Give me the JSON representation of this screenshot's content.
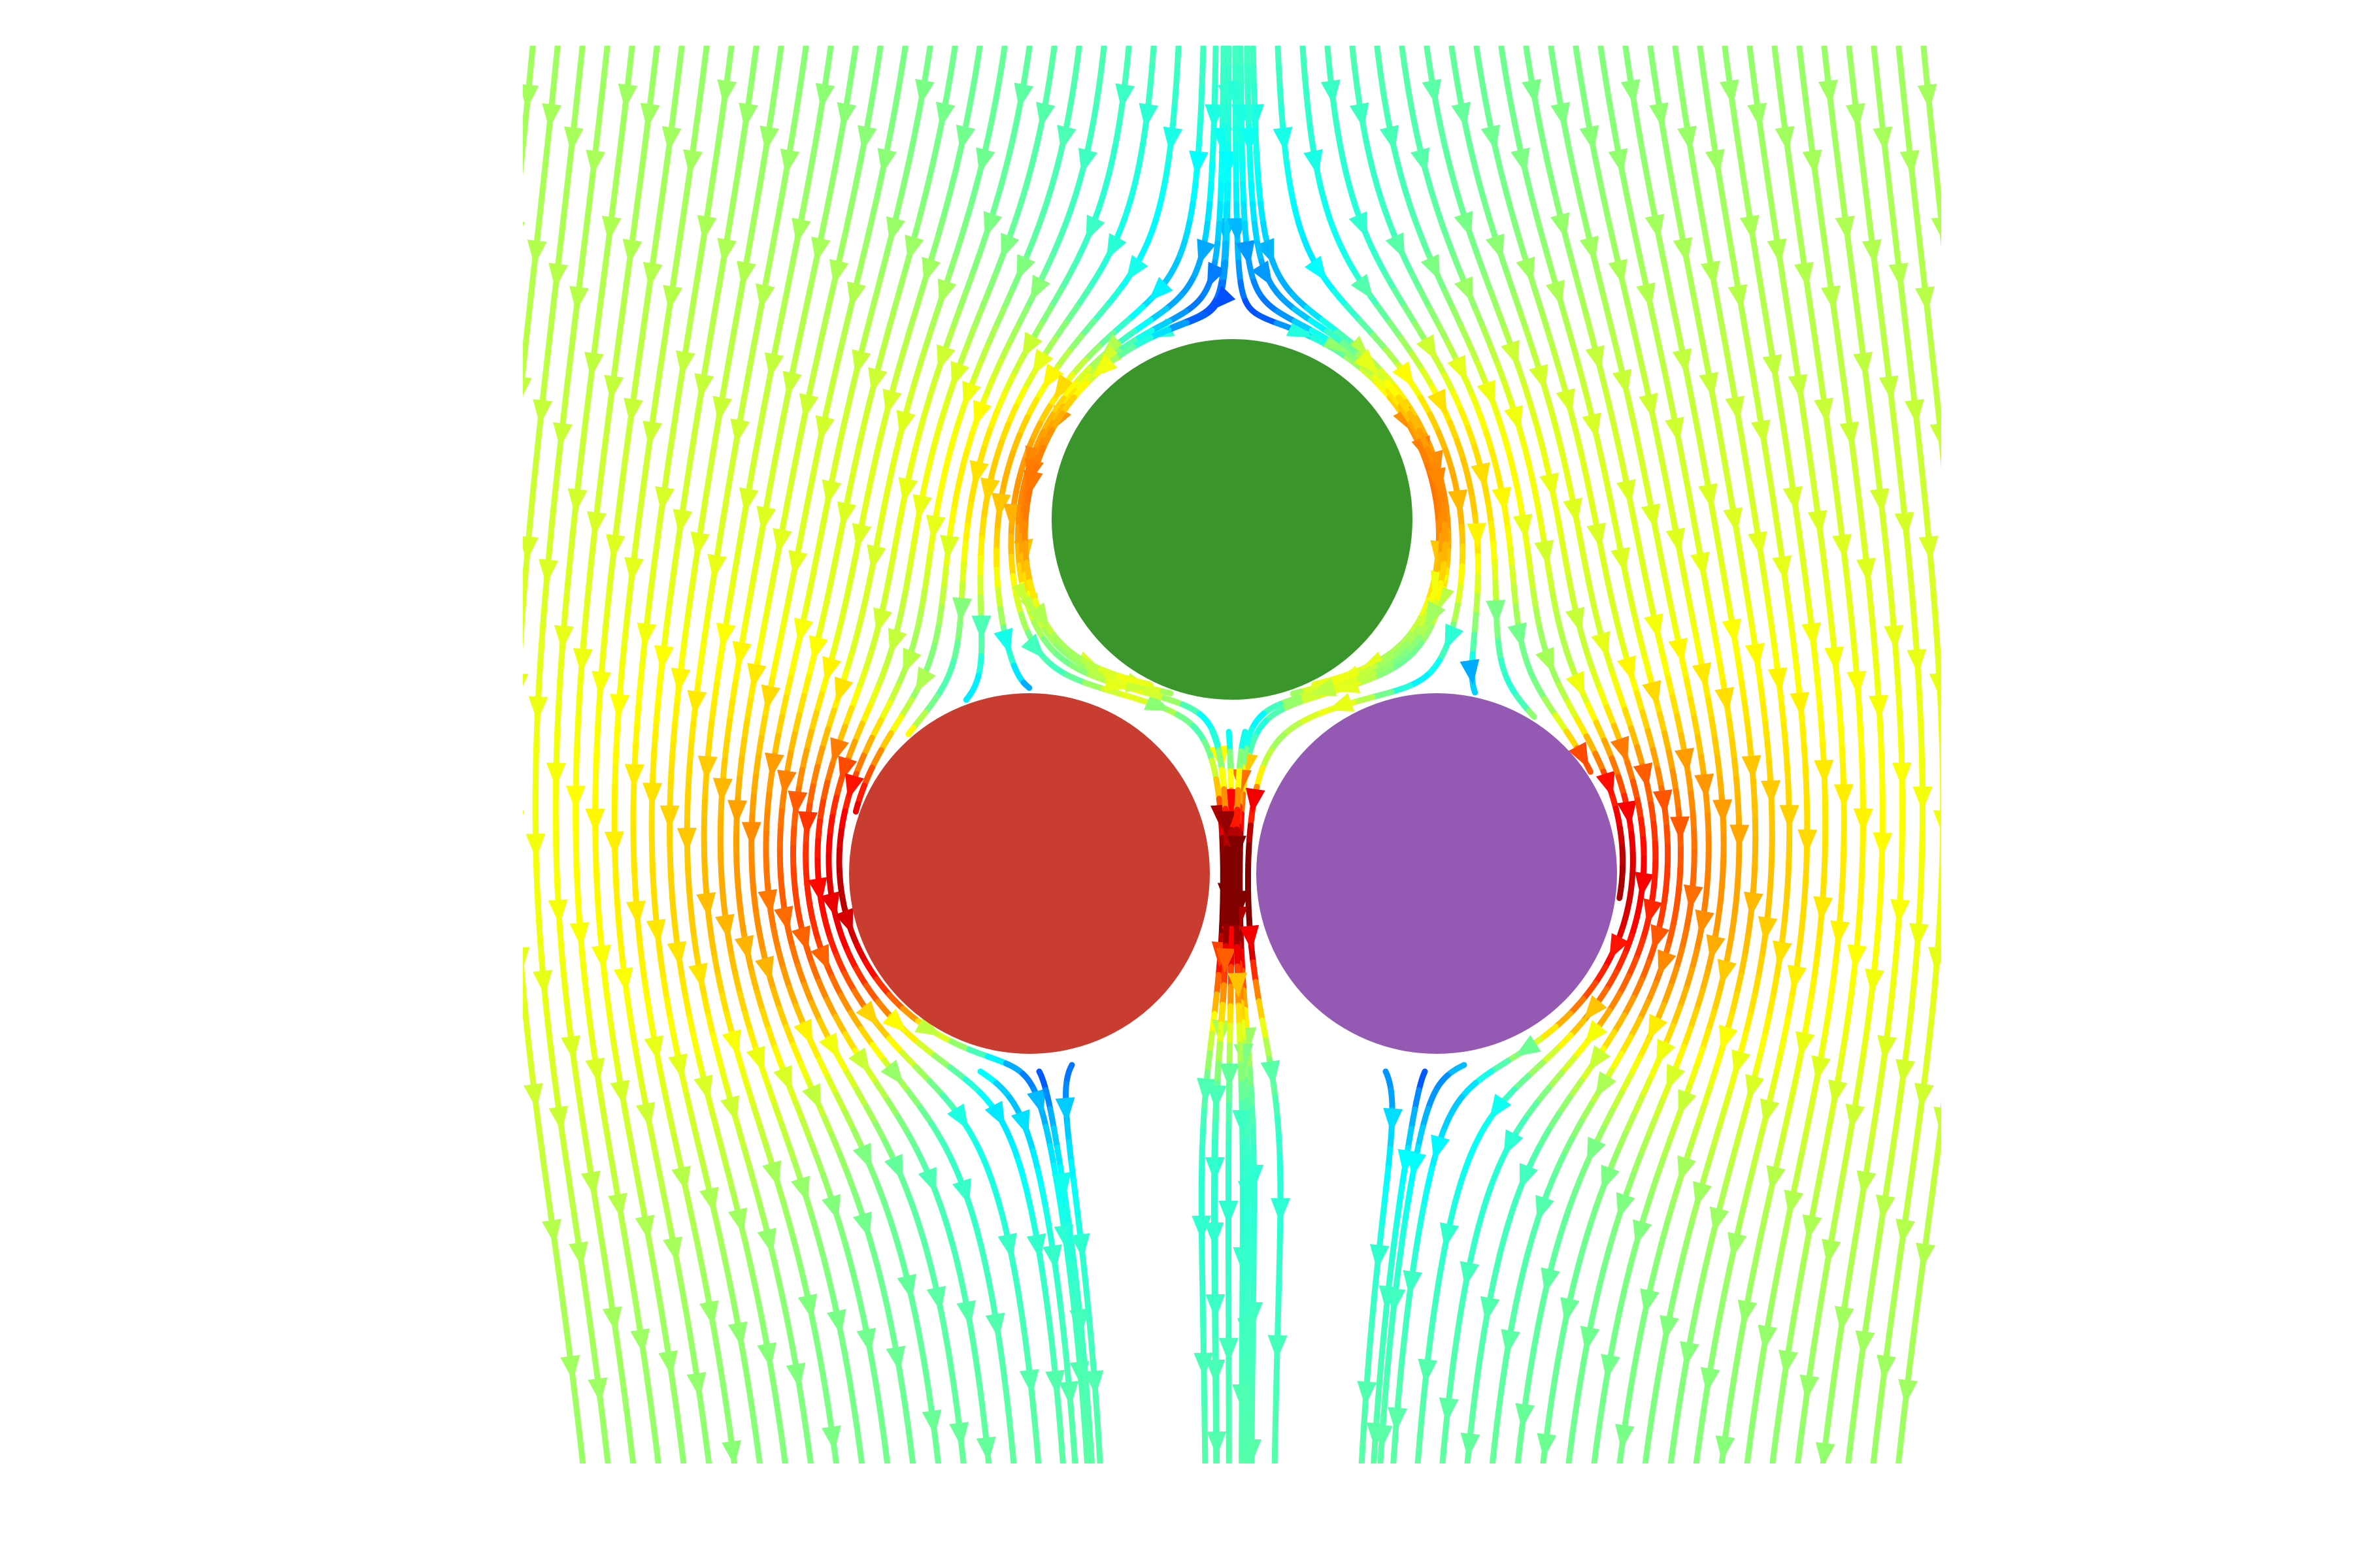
{
  "figure": {
    "type": "streamline-flow-around-three-disks",
    "flow_direction": "downward",
    "colormap": "jet",
    "colormap_stops": [
      "#00008f",
      "#0000ff",
      "#0080ff",
      "#00ffff",
      "#80ff80",
      "#ffff00",
      "#ff8000",
      "#ff0000",
      "#800000"
    ],
    "streamline_style": "lines with arrowheads along each line",
    "background": "#ffffff"
  },
  "disks": [
    {
      "id": "top",
      "color": "#3a962a"
    },
    {
      "id": "bottom-left",
      "color": "#c93d31"
    },
    {
      "id": "bottom-right",
      "color": "#945ab3"
    }
  ]
}
